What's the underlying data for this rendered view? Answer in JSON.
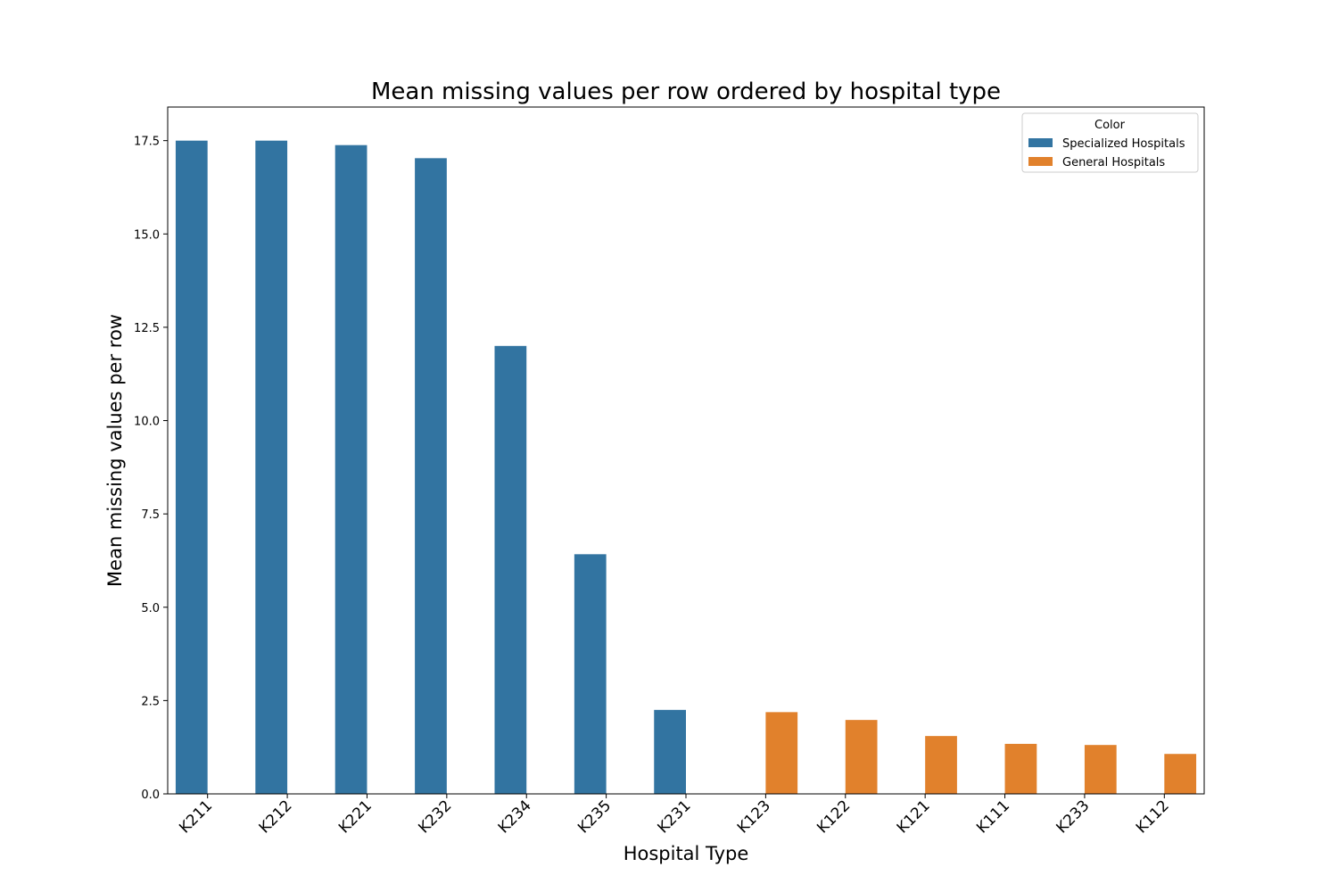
{
  "chart_data": {
    "type": "bar",
    "title": "Mean missing values per row ordered by hospital type",
    "xlabel": "Hospital Type",
    "ylabel": "Mean missing values per row",
    "categories": [
      "K211",
      "K212",
      "K221",
      "K232",
      "K234",
      "K235",
      "K231",
      "K123",
      "K122",
      "K121",
      "K111",
      "K233",
      "K112"
    ],
    "series": [
      {
        "name": "Specialized Hospitals",
        "color": "#3274a1",
        "values": [
          17.5,
          17.5,
          17.38,
          17.03,
          12.0,
          6.42,
          2.25,
          null,
          null,
          null,
          null,
          null,
          null
        ]
      },
      {
        "name": "General Hospitals",
        "color": "#e1812c",
        "values": [
          null,
          null,
          null,
          null,
          null,
          null,
          null,
          2.19,
          1.98,
          1.55,
          1.34,
          1.31,
          1.07
        ]
      }
    ],
    "ylim": [
      0,
      18.4
    ],
    "yticks": [
      "0.0",
      "2.5",
      "5.0",
      "7.5",
      "10.0",
      "12.5",
      "15.0",
      "17.5"
    ],
    "grid": false,
    "legend": {
      "title": "Color",
      "position": "top-right"
    }
  }
}
